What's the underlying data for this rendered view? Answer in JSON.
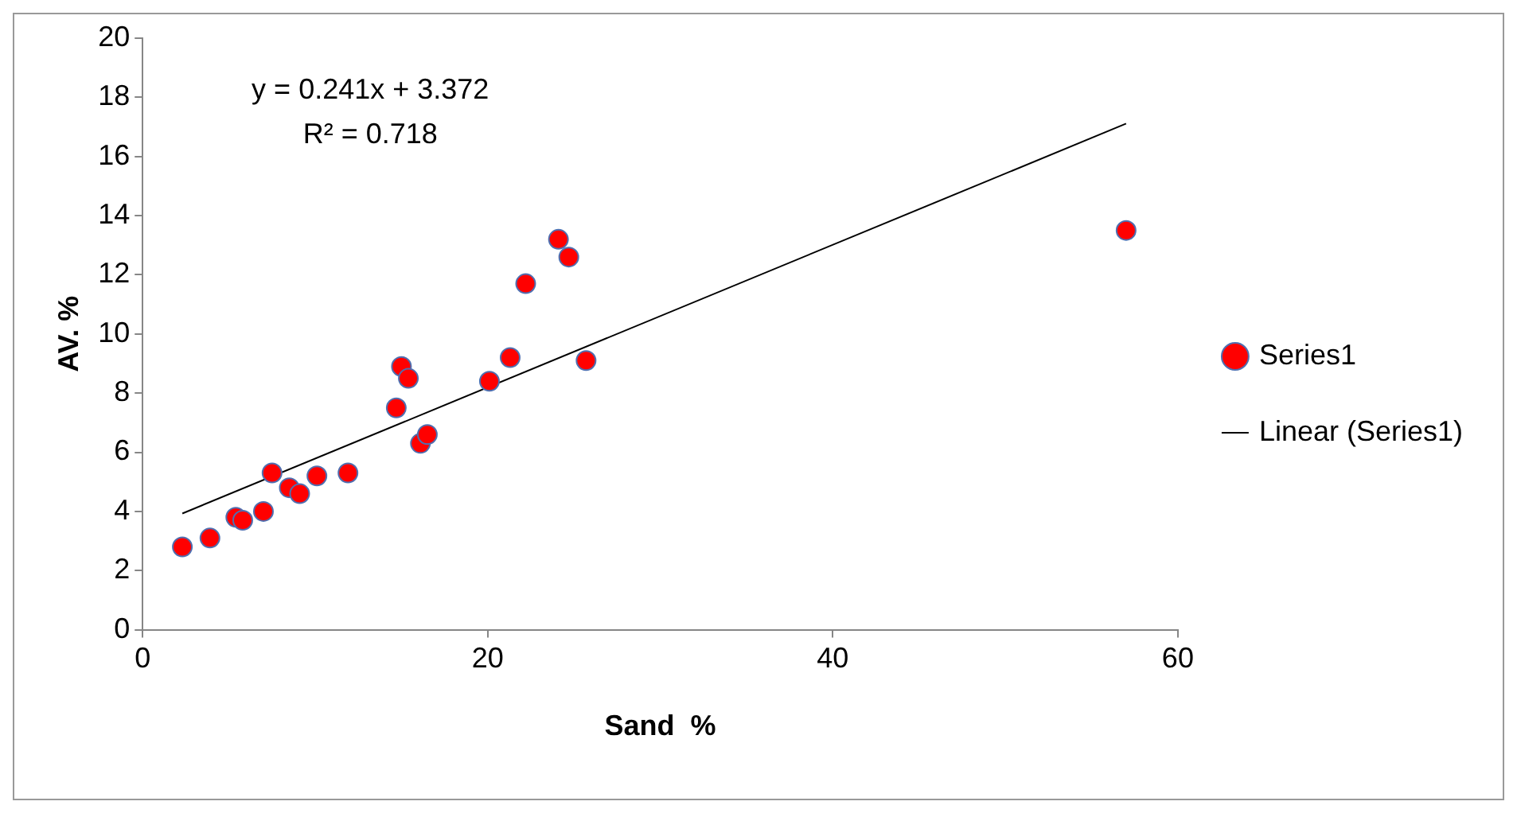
{
  "chart_data": {
    "type": "scatter",
    "xlabel": "Sand  %",
    "ylabel": "AV. %",
    "annotations": [
      "y = 0.241x + 3.372",
      "R² = 0.718"
    ],
    "xlim": [
      0,
      60
    ],
    "xticks": [
      0,
      20,
      40,
      60
    ],
    "ylim": [
      0,
      20
    ],
    "yticks": [
      0,
      2,
      4,
      6,
      8,
      10,
      12,
      14,
      16,
      18,
      20
    ],
    "grid": false,
    "legend": "right",
    "series": [
      {
        "name": "Series1",
        "type": "scatter",
        "marker": "circle",
        "color": "#ff0000",
        "x": [
          2.3,
          3.9,
          5.4,
          5.8,
          7.0,
          7.5,
          8.5,
          9.1,
          10.1,
          11.9,
          14.7,
          15.0,
          15.4,
          16.1,
          16.5,
          20.1,
          21.3,
          22.2,
          24.1,
          24.7,
          25.7,
          57.0
        ],
        "values": [
          2.8,
          3.1,
          3.8,
          3.7,
          4.0,
          5.3,
          4.8,
          4.6,
          5.2,
          5.3,
          7.5,
          8.9,
          8.5,
          6.3,
          6.6,
          8.4,
          9.2,
          11.7,
          13.2,
          12.6,
          9.1,
          13.5
        ]
      },
      {
        "name": "Linear (Series1)",
        "type": "line",
        "color": "#000000",
        "x": [
          2.3,
          57.0
        ],
        "values": [
          3.93,
          17.11
        ]
      }
    ]
  }
}
